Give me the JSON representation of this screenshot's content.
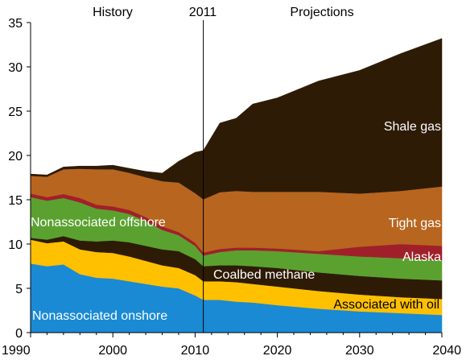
{
  "chart_data": {
    "type": "area",
    "stacked": true,
    "xlim": [
      1990,
      2040
    ],
    "ylim": [
      0,
      35
    ],
    "x_ticks": [
      "1990",
      "2000",
      "2010",
      "2020",
      "2030",
      "2040"
    ],
    "y_ticks": [
      "0",
      "5",
      "10",
      "15",
      "20",
      "25",
      "30",
      "35"
    ],
    "grid": false,
    "divider_year": 2011,
    "headers": {
      "history": "History",
      "divider": "2011",
      "projections": "Projections"
    },
    "x": [
      1990,
      1992,
      1994,
      1996,
      1998,
      2000,
      2002,
      2004,
      2006,
      2008,
      2010,
      2011,
      2013,
      2015,
      2017,
      2020,
      2025,
      2030,
      2035,
      2040
    ],
    "series": [
      {
        "name": "Nonassociated onshore",
        "color": "#1a8ad4",
        "label_color": "#ffffff",
        "values": [
          7.8,
          7.5,
          7.7,
          6.6,
          6.2,
          6.1,
          5.8,
          5.5,
          5.2,
          5.0,
          4.2,
          3.7,
          3.7,
          3.5,
          3.4,
          3.1,
          2.7,
          2.4,
          2.2,
          2.0
        ]
      },
      {
        "name": "Associated with oil",
        "color": "#ffc000",
        "label_color": "#000000",
        "values": [
          2.7,
          2.6,
          2.6,
          2.8,
          2.9,
          2.9,
          2.8,
          2.6,
          2.4,
          2.3,
          2.3,
          2.1,
          2.1,
          2.2,
          2.1,
          2.1,
          2.0,
          1.9,
          1.8,
          1.8
        ]
      },
      {
        "name": "Coalbed methane",
        "color": "#2e1b05",
        "label_color": "#ffffff",
        "values": [
          0.2,
          0.4,
          0.6,
          1.0,
          1.2,
          1.4,
          1.6,
          1.7,
          1.8,
          1.9,
          1.8,
          1.7,
          1.8,
          1.9,
          2.0,
          2.1,
          2.1,
          2.1,
          2.1,
          2.1
        ]
      },
      {
        "name": "Nonassociated offshore",
        "color": "#5ba130",
        "label_color": "#ffffff",
        "values": [
          4.6,
          4.4,
          4.3,
          4.3,
          3.7,
          3.4,
          3.2,
          2.8,
          2.2,
          1.8,
          1.5,
          1.2,
          1.5,
          1.7,
          1.8,
          1.9,
          2.1,
          2.2,
          2.3,
          2.3
        ]
      },
      {
        "name": "Alaska",
        "color": "#a0202a",
        "label_color": "#ffffff",
        "values": [
          0.4,
          0.4,
          0.45,
          0.5,
          0.45,
          0.45,
          0.45,
          0.45,
          0.4,
          0.35,
          0.35,
          0.35,
          0.35,
          0.3,
          0.3,
          0.3,
          0.3,
          1.1,
          1.6,
          1.6
        ]
      },
      {
        "name": "Tight gas",
        "color": "#b8651f",
        "label_color": "#ffffff",
        "values": [
          2.0,
          2.3,
          2.8,
          3.3,
          4.0,
          4.2,
          4.2,
          4.5,
          5.1,
          5.6,
          5.6,
          6.0,
          6.4,
          6.4,
          6.3,
          6.4,
          6.7,
          6.0,
          6.0,
          6.7
        ]
      },
      {
        "name": "Shale gas",
        "color": "#2e1b05",
        "label_color": "#ffffff",
        "values": [
          0.2,
          0.2,
          0.25,
          0.3,
          0.35,
          0.45,
          0.5,
          0.65,
          0.9,
          2.4,
          4.6,
          5.5,
          7.8,
          8.2,
          9.9,
          10.6,
          12.5,
          13.9,
          15.5,
          16.7
        ]
      }
    ]
  }
}
